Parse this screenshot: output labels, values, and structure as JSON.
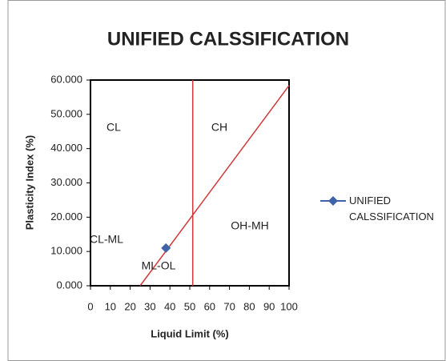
{
  "chart_data": {
    "type": "scatter",
    "title": "UNIFIED CALSSIFICATION",
    "x_label": "Liquid Limit (%)",
    "y_label": "Plasticity Index (%)",
    "series": [
      {
        "name": "UNIFIED CALSSIFICATION",
        "color": "#3f63a8",
        "x": [
          38
        ],
        "values": [
          11
        ]
      }
    ],
    "reference_lines": [
      {
        "color": "#d03a3a",
        "x": [
          25,
          100
        ],
        "y": [
          0,
          58.4
        ]
      },
      {
        "color": "#d03a3a",
        "x": [
          51.5,
          51.5
        ],
        "y": [
          0,
          60
        ]
      }
    ],
    "annotations": [
      "CL",
      "CH",
      "CL-ML",
      "OH-MH",
      "ML-OL"
    ],
    "xlim": [
      0,
      100
    ],
    "xticks": [
      0,
      10,
      20,
      30,
      40,
      50,
      60,
      70,
      80,
      90,
      100
    ],
    "ylim": [
      0,
      60
    ],
    "yticks": [
      {
        "value": 0,
        "label": "0.000"
      },
      {
        "value": 10,
        "label": "10.000"
      },
      {
        "value": 20,
        "label": "20.000"
      },
      {
        "value": 30,
        "label": "30.000"
      },
      {
        "value": 40,
        "label": "40.000"
      },
      {
        "value": 50,
        "label": "50.000"
      },
      {
        "value": 60,
        "label": "60.000"
      }
    ],
    "grid": false
  }
}
